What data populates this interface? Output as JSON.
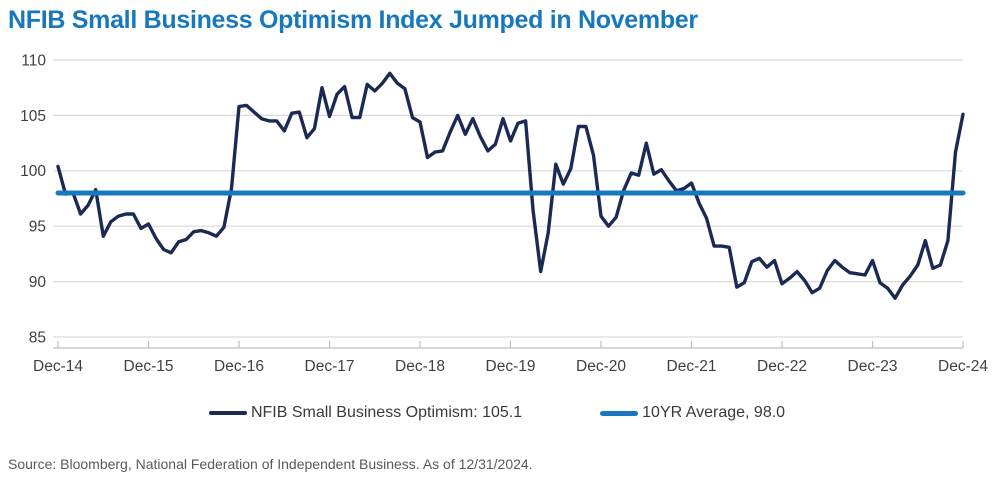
{
  "title": "NFIB Small Business Optimism Index Jumped in November",
  "source": "Source: Bloomberg, National Federation of Independent Business. As of 12/31/2024.",
  "colors": {
    "title": "#1878BE",
    "series_line": "#1A2A55",
    "average_line": "#1878BE",
    "grid": "#D9D9D9",
    "axis": "#BFBFBF",
    "tick_text": "#404040",
    "legend_text": "#3A3A3A",
    "source_text": "#595959"
  },
  "legend": {
    "series_label": "NFIB Small Business Optimism: 105.1",
    "average_label": "10YR Average, 98.0"
  },
  "chart_data": {
    "type": "line",
    "title": "NFIB Small Business Optimism Index Jumped in November",
    "frequency": "monthly",
    "x_start": "Dec-2014",
    "x_end": "Dec-2024",
    "x_tick_labels": [
      "Dec-14",
      "Dec-15",
      "Dec-16",
      "Dec-17",
      "Dec-18",
      "Dec-19",
      "Dec-20",
      "Dec-21",
      "Dec-22",
      "Dec-23",
      "Dec-24"
    ],
    "ylim": [
      85,
      110
    ],
    "yticks": [
      110,
      105,
      100,
      95,
      90,
      85
    ],
    "grid": "horizontal",
    "legend_position": "bottom",
    "series": [
      {
        "name": "NFIB Small Business Optimism: 105.1",
        "color": "#1A2A55",
        "latest_value": 105.1,
        "values": [
          100.4,
          97.9,
          98.0,
          96.1,
          96.9,
          98.3,
          94.1,
          95.4,
          95.9,
          96.1,
          96.1,
          94.8,
          95.2,
          93.9,
          92.9,
          92.6,
          93.6,
          93.8,
          94.5,
          94.6,
          94.4,
          94.1,
          94.9,
          98.4,
          105.8,
          105.9,
          105.3,
          104.7,
          104.5,
          104.5,
          103.6,
          105.2,
          105.3,
          103.0,
          103.8,
          107.5,
          104.9,
          106.9,
          107.6,
          104.8,
          104.8,
          107.8,
          107.2,
          107.9,
          108.8,
          107.9,
          107.4,
          104.8,
          104.4,
          101.2,
          101.7,
          101.8,
          103.5,
          105.0,
          103.3,
          104.7,
          103.1,
          101.8,
          102.4,
          104.7,
          102.7,
          104.3,
          104.5,
          96.4,
          90.9,
          94.4,
          100.6,
          98.8,
          100.2,
          104.0,
          104.0,
          101.4,
          95.9,
          95.0,
          95.8,
          98.2,
          99.8,
          99.6,
          102.5,
          99.7,
          100.1,
          99.1,
          98.2,
          98.4,
          98.9,
          97.1,
          95.7,
          93.2,
          93.2,
          93.1,
          89.5,
          89.9,
          91.8,
          92.1,
          91.3,
          91.9,
          89.8,
          90.3,
          90.9,
          90.1,
          89.0,
          89.4,
          91.0,
          91.9,
          91.3,
          90.8,
          90.7,
          90.6,
          91.9,
          89.9,
          89.4,
          88.5,
          89.7,
          90.5,
          91.5,
          93.7,
          91.2,
          91.5,
          93.7,
          101.7,
          105.1
        ]
      },
      {
        "name": "10YR Average, 98.0",
        "color": "#1878BE",
        "type": "constant",
        "value": 98.0
      }
    ]
  }
}
